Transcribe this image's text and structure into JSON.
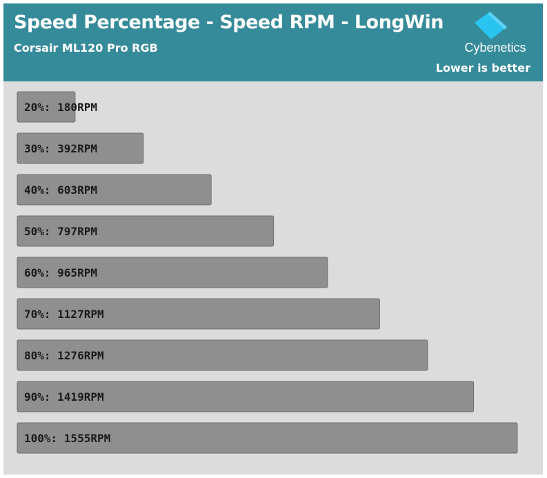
{
  "header": {
    "title": "Speed Percentage - Speed RPM - LongWin",
    "subtitle": "Corsair ML120 Pro RGB",
    "brand": "Cybenetics",
    "note": "Lower is better"
  },
  "colors": {
    "header_bg": "#368b9a",
    "plot_bg": "#dcdcdc",
    "bar_fill": "#8f8f8f",
    "bar_stroke": "#6e6e6e",
    "logo_blue": "#29c4f0"
  },
  "chart_data": {
    "type": "bar",
    "orientation": "horizontal",
    "title": "Speed Percentage - Speed RPM - LongWin",
    "subtitle": "Corsair ML120 Pro RGB",
    "categories": [
      "20%",
      "30%",
      "40%",
      "50%",
      "60%",
      "70%",
      "80%",
      "90%",
      "100%"
    ],
    "values": [
      180,
      392,
      603,
      797,
      965,
      1127,
      1276,
      1419,
      1555
    ],
    "unit": "RPM",
    "labels": [
      "20%: 180RPM",
      "30%: 392RPM",
      "40%: 603RPM",
      "50%: 797RPM",
      "60%: 965RPM",
      "70%: 1127RPM",
      "80%: 1276RPM",
      "90%: 1419RPM",
      "100%: 1555RPM"
    ],
    "xlim": [
      0,
      1555
    ],
    "grid": false,
    "legend": "none"
  }
}
